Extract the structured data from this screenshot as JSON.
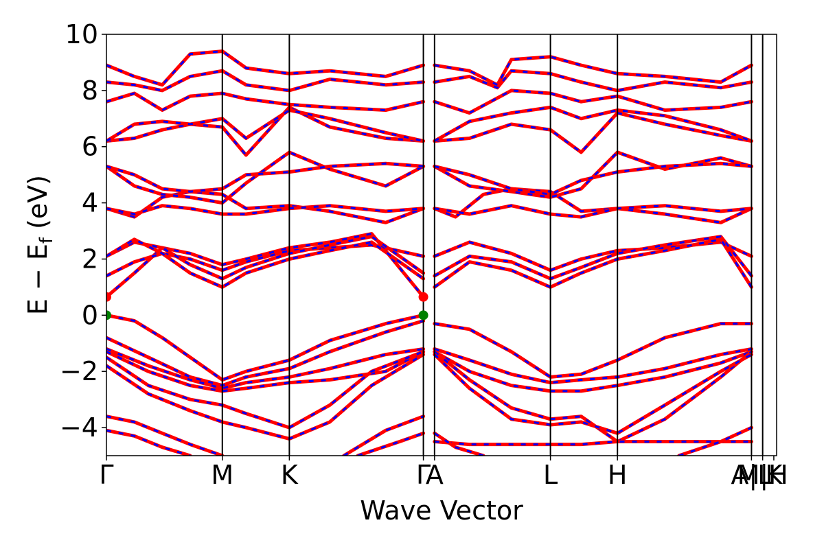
{
  "chart_data": {
    "type": "line",
    "title": "",
    "xlabel": "Wave Vector",
    "ylabel_main": "E − E",
    "ylabel_sub": "f",
    "ylabel_unit": " (eV)",
    "ylim": [
      -5,
      10
    ],
    "yticks": [
      -4,
      -2,
      0,
      2,
      4,
      6,
      8,
      10
    ],
    "ytick_labels": [
      "−4",
      "−2",
      "0",
      "2",
      "4",
      "6",
      "8",
      "10"
    ],
    "grid": false,
    "xlim": [
      0,
      2.4
    ],
    "kpoints": [
      {
        "label": "Γ",
        "x": 0.0
      },
      {
        "label": "M",
        "x": 0.415
      },
      {
        "label": "K",
        "x": 0.655
      },
      {
        "label": "Γ",
        "x": 1.135
      },
      {
        "label": "A",
        "x": 1.175
      },
      {
        "label": "L",
        "x": 1.59
      },
      {
        "label": "H",
        "x": 1.83
      },
      {
        "label": "A|L",
        "x": 2.31
      },
      {
        "label": "M|H",
        "x": 2.35
      },
      {
        "label": "K",
        "x": 2.39
      }
    ],
    "series_colors": {
      "spin_up": "#ff0000",
      "spin_down": "#0000ff"
    },
    "extrema_points": [
      {
        "kind": "CBM",
        "color": "#ff0000",
        "points": [
          [
            0.0,
            0.65
          ],
          [
            1.135,
            0.65
          ]
        ]
      },
      {
        "kind": "VBM",
        "color": "#008000",
        "points": [
          [
            0.0,
            0.0
          ],
          [
            1.135,
            0.0
          ]
        ]
      }
    ],
    "bands": [
      {
        "x": [
          0,
          0.1,
          0.2,
          0.3,
          0.415,
          0.5,
          0.655,
          0.8,
          1.0,
          1.135
        ],
        "y": [
          0.0,
          -0.2,
          -0.8,
          -1.5,
          -2.3,
          -2.0,
          -1.6,
          -0.9,
          -0.3,
          0.0
        ]
      },
      {
        "x": [
          0,
          0.15,
          0.3,
          0.415,
          0.5,
          0.655,
          0.8,
          1.0,
          1.135
        ],
        "y": [
          -0.8,
          -1.5,
          -2.2,
          -2.5,
          -2.2,
          -1.9,
          -1.3,
          -0.6,
          -0.2
        ]
      },
      {
        "x": [
          0,
          0.15,
          0.3,
          0.415,
          0.5,
          0.655,
          0.8,
          1.0,
          1.135
        ],
        "y": [
          -1.2,
          -1.8,
          -2.3,
          -2.6,
          -2.4,
          -2.2,
          -1.9,
          -1.4,
          -1.2
        ]
      },
      {
        "x": [
          0,
          0.15,
          0.3,
          0.415,
          0.5,
          0.655,
          0.8,
          1.0,
          1.135
        ],
        "y": [
          -1.3,
          -2.0,
          -2.5,
          -2.7,
          -2.6,
          -2.4,
          -2.3,
          -2.0,
          -1.3
        ]
      },
      {
        "x": [
          0,
          0.15,
          0.3,
          0.415,
          0.5,
          0.655,
          0.8,
          0.95,
          1.135
        ],
        "y": [
          -1.5,
          -2.5,
          -3.0,
          -3.2,
          -3.5,
          -4.0,
          -3.2,
          -2.0,
          -1.3
        ]
      },
      {
        "x": [
          0,
          0.15,
          0.3,
          0.415,
          0.5,
          0.655,
          0.8,
          0.95,
          1.135
        ],
        "y": [
          -1.8,
          -2.8,
          -3.4,
          -3.8,
          -4.0,
          -4.4,
          -3.8,
          -2.5,
          -1.4
        ]
      },
      {
        "x": [
          0,
          0.1,
          0.2,
          0.3,
          0.415
        ],
        "y": [
          -3.6,
          -3.8,
          -4.2,
          -4.6,
          -5.0
        ]
      },
      {
        "x": [
          0,
          0.1,
          0.2,
          0.3
        ],
        "y": [
          -4.1,
          -4.3,
          -4.7,
          -5.0
        ]
      },
      {
        "x": [
          0.85,
          1.0,
          1.135
        ],
        "y": [
          -5.0,
          -4.1,
          -3.6
        ]
      },
      {
        "x": [
          0.9,
          1.05,
          1.135
        ],
        "y": [
          -5.0,
          -4.5,
          -4.2
        ]
      },
      {
        "x": [
          0,
          0.1,
          0.2,
          0.3,
          0.415,
          0.5,
          0.655,
          0.8,
          0.95,
          1.135
        ],
        "y": [
          0.65,
          1.5,
          2.4,
          2.2,
          1.8,
          2.0,
          2.4,
          2.6,
          2.9,
          0.65
        ]
      },
      {
        "x": [
          0,
          0.1,
          0.2,
          0.3,
          0.415,
          0.5,
          0.655,
          0.8,
          0.95,
          1.135
        ],
        "y": [
          1.4,
          1.9,
          2.2,
          2.0,
          1.6,
          1.9,
          2.3,
          2.4,
          2.5,
          2.1
        ]
      },
      {
        "x": [
          0,
          0.1,
          0.2,
          0.3,
          0.415,
          0.5,
          0.655,
          0.8,
          0.95,
          1.135
        ],
        "y": [
          2.1,
          2.6,
          2.4,
          1.8,
          1.3,
          1.7,
          2.2,
          2.5,
          2.8,
          1.5
        ]
      },
      {
        "x": [
          0,
          0.1,
          0.2,
          0.3,
          0.415,
          0.5,
          0.655,
          0.8,
          0.95,
          1.135
        ],
        "y": [
          2.1,
          2.7,
          2.2,
          1.5,
          1.0,
          1.5,
          2.0,
          2.3,
          2.6,
          1.3
        ]
      },
      {
        "x": [
          0,
          0.1,
          0.2,
          0.3,
          0.415,
          0.5,
          0.655,
          0.8,
          1.0,
          1.135
        ],
        "y": [
          3.8,
          3.5,
          4.2,
          4.4,
          4.3,
          3.8,
          3.9,
          3.7,
          3.3,
          3.8
        ]
      },
      {
        "x": [
          0,
          0.1,
          0.2,
          0.3,
          0.415,
          0.5,
          0.655,
          0.8,
          1.0,
          1.135
        ],
        "y": [
          3.8,
          3.6,
          3.9,
          3.8,
          3.6,
          3.6,
          3.8,
          3.9,
          3.7,
          3.8
        ]
      },
      {
        "x": [
          0,
          0.1,
          0.2,
          0.3,
          0.415,
          0.5,
          0.655,
          0.8,
          1.0,
          1.135
        ],
        "y": [
          5.3,
          4.6,
          4.3,
          4.2,
          4.0,
          4.7,
          5.8,
          5.2,
          4.6,
          5.3
        ]
      },
      {
        "x": [
          0,
          0.1,
          0.2,
          0.3,
          0.415,
          0.5,
          0.655,
          0.8,
          1.0,
          1.135
        ],
        "y": [
          5.3,
          5.0,
          4.5,
          4.4,
          4.5,
          5.0,
          5.1,
          5.3,
          5.4,
          5.3
        ]
      },
      {
        "x": [
          0,
          0.1,
          0.2,
          0.3,
          0.415,
          0.5,
          0.655,
          0.8,
          1.0,
          1.135
        ],
        "y": [
          6.2,
          6.3,
          6.6,
          6.8,
          6.7,
          5.7,
          7.4,
          6.7,
          6.3,
          6.2
        ]
      },
      {
        "x": [
          0,
          0.1,
          0.2,
          0.3,
          0.415,
          0.5,
          0.655,
          0.8,
          1.0,
          1.135
        ],
        "y": [
          6.2,
          6.8,
          6.9,
          6.8,
          7.0,
          6.3,
          7.3,
          7.0,
          6.5,
          6.2
        ]
      },
      {
        "x": [
          0,
          0.1,
          0.2,
          0.3,
          0.415,
          0.5,
          0.655,
          0.8,
          1.0,
          1.135
        ],
        "y": [
          7.6,
          7.9,
          7.3,
          7.8,
          7.9,
          7.7,
          7.5,
          7.4,
          7.3,
          7.6
        ]
      },
      {
        "x": [
          0,
          0.1,
          0.2,
          0.3,
          0.415,
          0.5,
          0.655,
          0.8,
          1.0,
          1.135
        ],
        "y": [
          8.3,
          8.2,
          8.0,
          8.5,
          8.7,
          8.2,
          8.0,
          8.4,
          8.2,
          8.3
        ]
      },
      {
        "x": [
          0,
          0.1,
          0.2,
          0.3,
          0.415,
          0.5,
          0.655,
          0.8,
          1.0,
          1.135
        ],
        "y": [
          8.9,
          8.5,
          8.2,
          9.3,
          9.4,
          8.8,
          8.6,
          8.7,
          8.5,
          8.9
        ]
      },
      {
        "x": [
          1.175,
          1.3,
          1.45,
          1.59,
          1.7,
          1.83,
          2.0,
          2.2,
          2.31
        ],
        "y": [
          -0.3,
          -0.5,
          -1.3,
          -2.2,
          -2.1,
          -1.6,
          -0.8,
          -0.3,
          -0.3
        ]
      },
      {
        "x": [
          1.175,
          1.3,
          1.45,
          1.59,
          1.7,
          1.83,
          2.0,
          2.2,
          2.31
        ],
        "y": [
          -1.2,
          -1.6,
          -2.1,
          -2.4,
          -2.3,
          -2.2,
          -1.9,
          -1.4,
          -1.2
        ]
      },
      {
        "x": [
          1.175,
          1.3,
          1.45,
          1.59,
          1.7,
          1.83,
          2.0,
          2.2,
          2.31
        ],
        "y": [
          -1.3,
          -2.0,
          -2.5,
          -2.7,
          -2.7,
          -2.5,
          -2.2,
          -1.7,
          -1.3
        ]
      },
      {
        "x": [
          1.175,
          1.3,
          1.45,
          1.59,
          1.7,
          1.83,
          2.0,
          2.2,
          2.31
        ],
        "y": [
          -1.3,
          -2.3,
          -3.3,
          -3.7,
          -3.6,
          -4.5,
          -3.7,
          -2.2,
          -1.3
        ]
      },
      {
        "x": [
          1.175,
          1.3,
          1.45,
          1.59,
          1.7,
          1.83,
          2.0,
          2.2,
          2.31
        ],
        "y": [
          -1.4,
          -2.6,
          -3.7,
          -3.9,
          -3.8,
          -4.2,
          -3.2,
          -2.0,
          -1.4
        ]
      },
      {
        "x": [
          1.175,
          1.3,
          1.45,
          1.59,
          1.7,
          1.83,
          2.0,
          2.2,
          2.31
        ],
        "y": [
          -4.5,
          -4.6,
          -4.6,
          -4.6,
          -4.6,
          -4.5,
          -4.5,
          -4.5,
          -4.5
        ]
      },
      {
        "x": [
          1.175,
          1.25,
          1.35
        ],
        "y": [
          -4.2,
          -4.7,
          -5.0
        ]
      },
      {
        "x": [
          2.05,
          2.2,
          2.31
        ],
        "y": [
          -5.0,
          -4.5,
          -4.0
        ]
      },
      {
        "x": [
          1.175,
          1.3,
          1.45,
          1.59,
          1.7,
          1.83,
          2.0,
          2.2,
          2.31
        ],
        "y": [
          2.1,
          2.6,
          2.2,
          1.6,
          2.0,
          2.3,
          2.4,
          2.6,
          2.1
        ]
      },
      {
        "x": [
          1.175,
          1.3,
          1.45,
          1.59,
          1.7,
          1.83,
          2.0,
          2.2,
          2.31
        ],
        "y": [
          1.4,
          2.1,
          1.9,
          1.3,
          1.7,
          2.2,
          2.5,
          2.8,
          1.4
        ]
      },
      {
        "x": [
          1.175,
          1.3,
          1.45,
          1.59,
          1.7,
          1.83,
          2.0,
          2.2,
          2.31
        ],
        "y": [
          1.0,
          1.9,
          1.6,
          1.0,
          1.5,
          2.0,
          2.3,
          2.7,
          1.0
        ]
      },
      {
        "x": [
          1.175,
          1.25,
          1.35,
          1.45,
          1.59,
          1.7,
          1.83,
          2.0,
          2.2,
          2.31
        ],
        "y": [
          3.8,
          3.5,
          4.3,
          4.5,
          4.4,
          3.7,
          3.8,
          3.6,
          3.3,
          3.8
        ]
      },
      {
        "x": [
          1.175,
          1.3,
          1.45,
          1.59,
          1.7,
          1.83,
          2.0,
          2.2,
          2.31
        ],
        "y": [
          3.8,
          3.6,
          3.9,
          3.6,
          3.5,
          3.8,
          3.9,
          3.7,
          3.8
        ]
      },
      {
        "x": [
          1.175,
          1.3,
          1.45,
          1.59,
          1.7,
          1.83,
          2.0,
          2.2,
          2.31
        ],
        "y": [
          5.3,
          4.6,
          4.4,
          4.2,
          4.5,
          5.8,
          5.2,
          5.6,
          5.3
        ]
      },
      {
        "x": [
          1.175,
          1.3,
          1.45,
          1.59,
          1.7,
          1.83,
          2.0,
          2.2,
          2.31
        ],
        "y": [
          5.3,
          5.0,
          4.5,
          4.3,
          4.8,
          5.1,
          5.3,
          5.4,
          5.3
        ]
      },
      {
        "x": [
          1.175,
          1.3,
          1.45,
          1.59,
          1.7,
          1.83,
          2.0,
          2.2,
          2.31
        ],
        "y": [
          6.2,
          6.3,
          6.8,
          6.6,
          5.8,
          7.2,
          6.8,
          6.4,
          6.2
        ]
      },
      {
        "x": [
          1.175,
          1.3,
          1.45,
          1.59,
          1.7,
          1.83,
          2.0,
          2.2,
          2.31
        ],
        "y": [
          6.2,
          6.9,
          7.2,
          7.4,
          7.0,
          7.3,
          7.1,
          6.6,
          6.2
        ]
      },
      {
        "x": [
          1.175,
          1.3,
          1.45,
          1.59,
          1.7,
          1.83,
          2.0,
          2.2,
          2.31
        ],
        "y": [
          7.6,
          7.2,
          8.0,
          7.9,
          7.6,
          7.8,
          7.3,
          7.4,
          7.6
        ]
      },
      {
        "x": [
          1.175,
          1.3,
          1.4,
          1.45,
          1.59,
          1.7,
          1.83,
          2.0,
          2.2,
          2.31
        ],
        "y": [
          8.3,
          8.5,
          8.1,
          8.7,
          8.6,
          8.3,
          8.0,
          8.3,
          8.1,
          8.3
        ]
      },
      {
        "x": [
          1.175,
          1.3,
          1.4,
          1.45,
          1.59,
          1.7,
          1.83,
          2.0,
          2.2,
          2.31
        ],
        "y": [
          8.9,
          8.7,
          8.2,
          9.1,
          9.2,
          8.9,
          8.6,
          8.5,
          8.3,
          8.9
        ]
      }
    ]
  }
}
